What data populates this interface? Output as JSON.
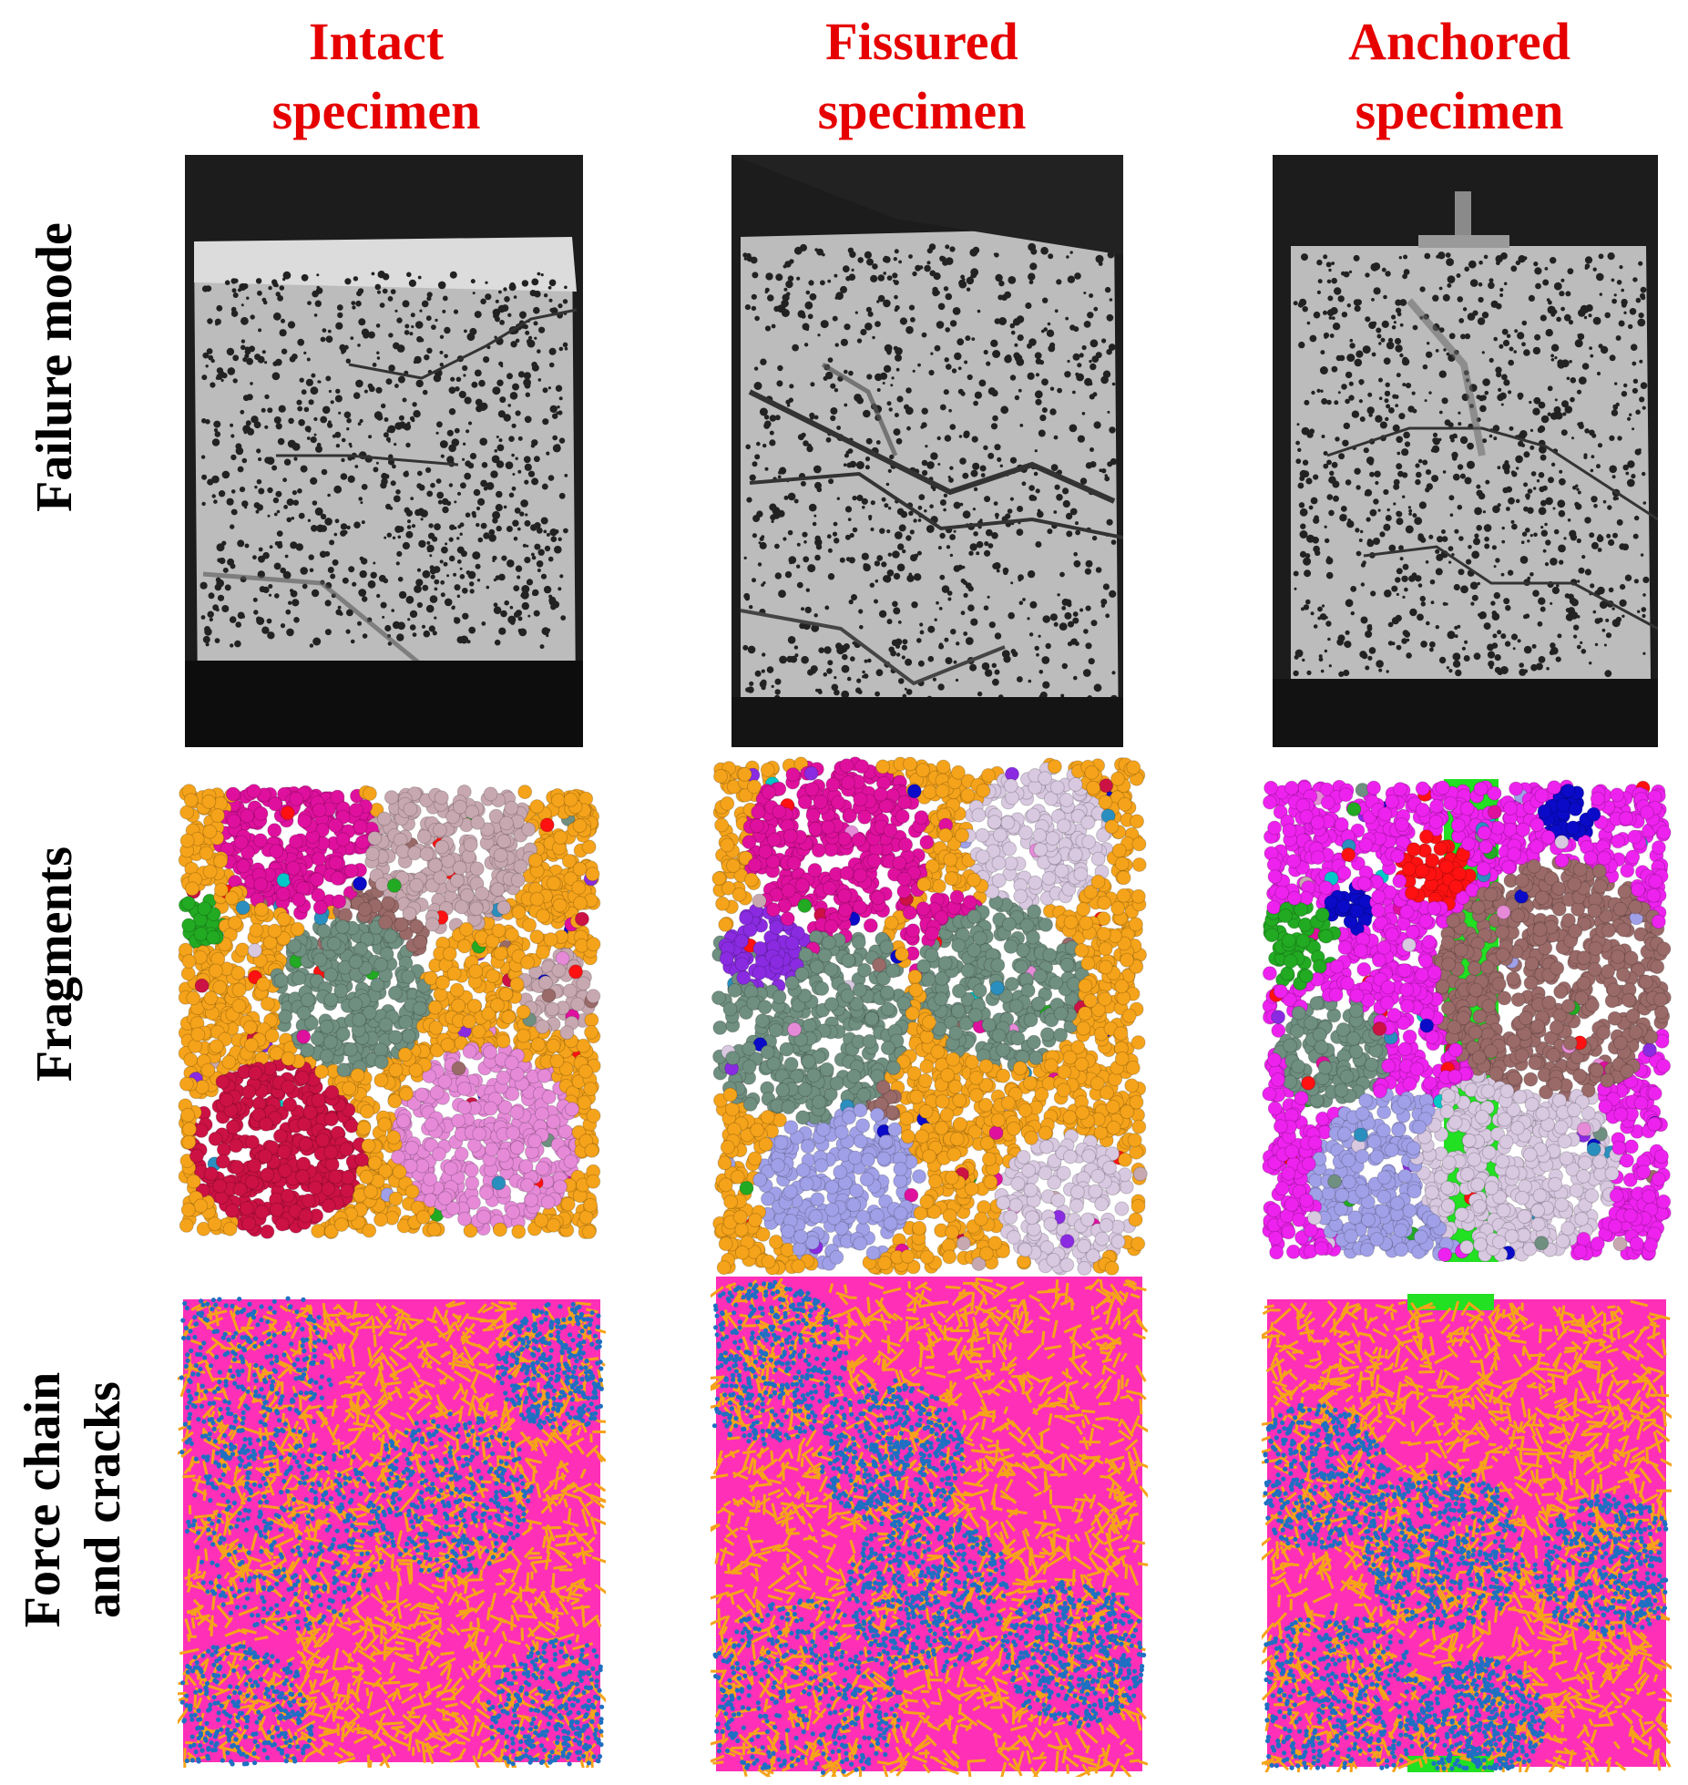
{
  "columns": [
    {
      "line1": "Intact",
      "line2": "specimen"
    },
    {
      "line1": "Fissured",
      "line2": "specimen"
    },
    {
      "line1": "Anchored",
      "line2": "specimen"
    }
  ],
  "rows": [
    {
      "line1": "Failure mode",
      "line2": ""
    },
    {
      "line1": "Fragments",
      "line2": ""
    },
    {
      "line1": "Force chain",
      "line2": "and cracks"
    }
  ],
  "colors": {
    "heading": "#e60000",
    "label": "#000000",
    "photo_bg": "#1c1c1c",
    "specimen_gray": "#bdbdbd",
    "speckle": "#222222",
    "orange": "#f5a31a",
    "magenta": "#ee22ee",
    "blue_crack": "#1f6fc2",
    "pink_chain": "#ff2fb8",
    "anchor_green": "#22e022",
    "fragment_palette": [
      "#e0109e",
      "#c8a8b0",
      "#cc1144",
      "#e68ad8",
      "#6f8f80",
      "#9a6a68",
      "#2a8fbf",
      "#22aa22",
      "#8a2be2",
      "#0a0ac8",
      "#a0a0e8",
      "#d8c8e0",
      "#ff1111",
      "#00c8c8"
    ]
  }
}
